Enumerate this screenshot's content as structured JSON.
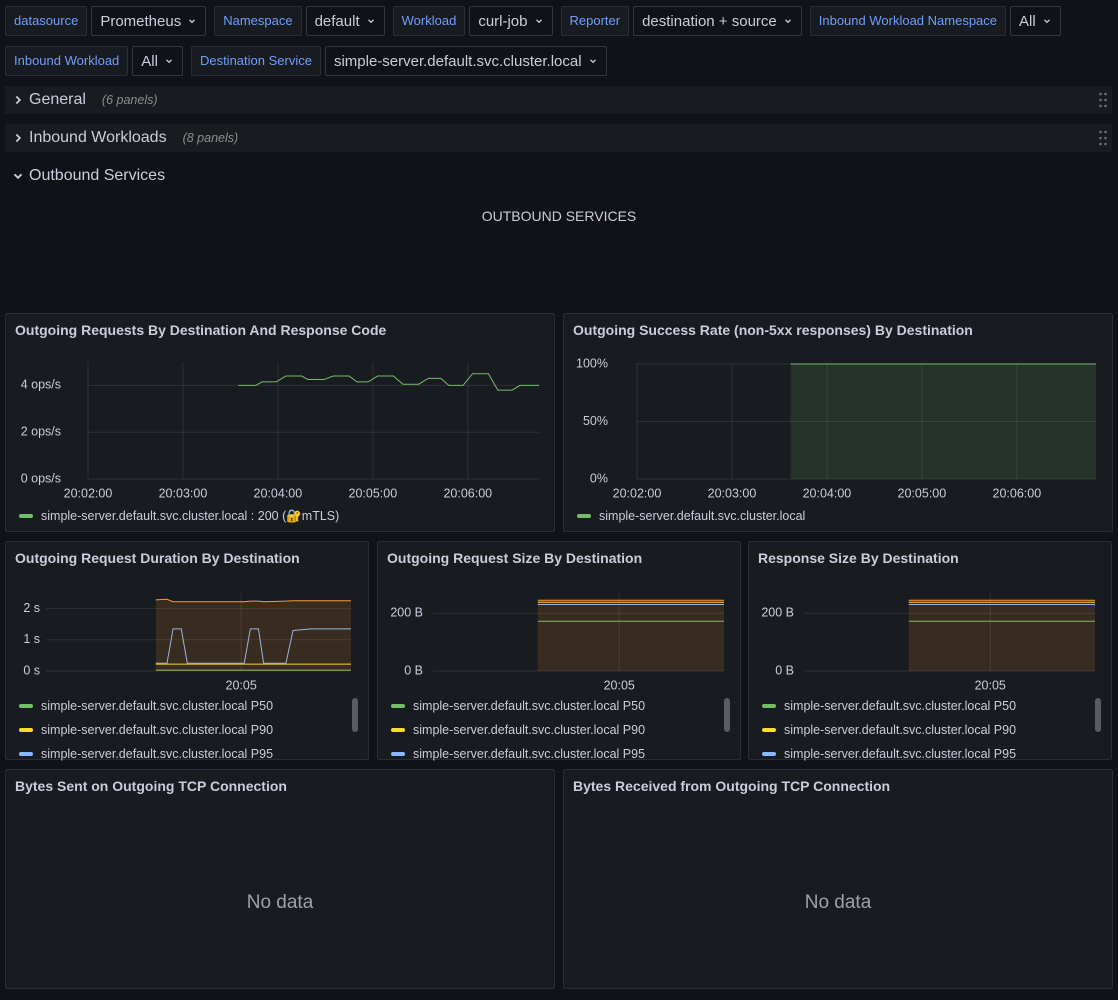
{
  "variables": [
    [
      {
        "label": "datasource",
        "value": "Prometheus"
      },
      {
        "label": "Namespace",
        "value": "default"
      },
      {
        "label": "Workload",
        "value": "curl-job"
      },
      {
        "label": "Reporter",
        "value": "destination + source"
      },
      {
        "label": "Inbound Workload Namespace",
        "value": "All"
      }
    ],
    [
      {
        "label": "Inbound Workload",
        "value": "All"
      },
      {
        "label": "Destination Service",
        "value": "simple-server.default.svc.cluster.local"
      }
    ]
  ],
  "rows": [
    {
      "title": "General",
      "count": "(6 panels)",
      "collapsed": true
    },
    {
      "title": "Inbound Workloads",
      "count": "(8 panels)",
      "collapsed": true
    },
    {
      "title": "Outbound Services",
      "collapsed": false
    }
  ],
  "text_panel": {
    "content": "OUTBOUND SERVICES"
  },
  "panels": [
    {
      "title": "Outgoing Requests By Destination And Response Code",
      "chart_data": {
        "type": "line",
        "x": [
          "20:03:35",
          "20:03:46",
          "20:03:50",
          "20:03:59",
          "20:04:05",
          "20:04:15",
          "20:04:19",
          "20:04:29",
          "20:04:35",
          "20:04:45",
          "20:04:50",
          "20:04:57",
          "20:05:03",
          "20:05:13",
          "20:05:19",
          "20:05:29",
          "20:05:35",
          "20:05:43",
          "20:05:48",
          "20:05:57",
          "20:06:03",
          "20:06:13",
          "20:06:19",
          "20:06:28",
          "20:06:33",
          "20:06:45"
        ],
        "series": [
          {
            "name": "simple-server.default.svc.cluster.local : 200 (🔐mTLS)",
            "color": "#73bf69",
            "values": [
              4.0,
              4.0,
              4.15,
              4.15,
              4.4,
              4.4,
              4.25,
              4.25,
              4.4,
              4.4,
              4.15,
              4.15,
              4.4,
              4.4,
              4.05,
              4.05,
              4.3,
              4.3,
              4.0,
              4.0,
              4.5,
              4.5,
              3.8,
              3.8,
              4.0,
              4.0
            ]
          }
        ],
        "xlim": [
          "20:02:00",
          "20:06:45"
        ],
        "xticks": [
          "20:02:00",
          "20:03:00",
          "20:04:00",
          "20:05:00",
          "20:06:00"
        ],
        "ylim": [
          0,
          5
        ],
        "yticks": [
          {
            "value": 0,
            "label": "0 ops/s"
          },
          {
            "value": 2,
            "label": "2 ops/s"
          },
          {
            "value": 4,
            "label": "4 ops/s"
          }
        ],
        "grid": true
      }
    },
    {
      "title": "Outgoing Success Rate (non-5xx responses) By Destination",
      "chart_data": {
        "type": "line",
        "x": [
          "20:03:37",
          "20:06:50"
        ],
        "series": [
          {
            "name": "simple-server.default.svc.cluster.local",
            "color": "#73bf69",
            "values": [
              100,
              100
            ],
            "fill": true
          }
        ],
        "xlim": [
          "20:02:00",
          "20:06:50"
        ],
        "xticks": [
          "20:02:00",
          "20:03:00",
          "20:04:00",
          "20:05:00",
          "20:06:00"
        ],
        "ylim": [
          0,
          100
        ],
        "yticks": [
          {
            "value": 0,
            "label": "0%"
          },
          {
            "value": 50,
            "label": "50%"
          },
          {
            "value": 100,
            "label": "100%"
          }
        ],
        "grid": true
      }
    },
    {
      "title": "Outgoing Request Duration By Destination",
      "chart_data": {
        "type": "line",
        "x": [
          "20:03:36",
          "20:03:47",
          "20:03:53",
          "20:04:01",
          "20:04:07",
          "20:05:03",
          "20:05:09",
          "20:05:17",
          "20:05:22",
          "20:05:44",
          "20:05:51",
          "20:06:09",
          "20:06:48"
        ],
        "series": [
          {
            "name": "simple-server.default.svc.cluster.local P50",
            "color": "#73bf69",
            "values": [
              0.03,
              0.03,
              0.03,
              0.03,
              0.03,
              0.03,
              0.03,
              0.03,
              0.03,
              0.03,
              0.03,
              0.03,
              0.03
            ]
          },
          {
            "name": "simple-server.default.svc.cluster.local P90",
            "color": "#fade2a",
            "values": [
              0.22,
              0.22,
              0.22,
              0.22,
              0.22,
              0.22,
              0.22,
              0.22,
              0.22,
              0.22,
              0.22,
              0.22,
              0.22
            ]
          },
          {
            "name": "simple-server.default.svc.cluster.local P95",
            "color": "#8ab8ff",
            "values": [
              0.25,
              0.25,
              1.35,
              1.35,
              0.25,
              0.25,
              1.35,
              1.35,
              0.25,
              0.25,
              1.3,
              1.35,
              1.35
            ]
          },
          {
            "color": "#ff9830",
            "values": [
              2.28,
              2.3,
              2.22,
              2.22,
              2.22,
              2.22,
              2.24,
              2.24,
              2.22,
              2.24,
              2.25,
              2.25,
              2.25
            ],
            "fill": true
          }
        ],
        "xlim": [
          "20:01:48",
          "20:06:48"
        ],
        "xticks": [
          "20:05"
        ],
        "ylim": [
          0,
          2.5
        ],
        "yticks": [
          {
            "value": 0,
            "label": "0 s"
          },
          {
            "value": 1,
            "label": "1 s"
          },
          {
            "value": 2,
            "label": "2 s"
          }
        ],
        "grid": true
      }
    },
    {
      "title": "Outgoing Request Size By Destination",
      "chart_data": {
        "type": "line",
        "x": [
          "20:03:36",
          "20:06:48"
        ],
        "series": [
          {
            "name": "simple-server.default.svc.cluster.local P50",
            "color": "#73bf69",
            "values": [
              172,
              172
            ]
          },
          {
            "name": "simple-server.default.svc.cluster.local P90",
            "color": "#fade2a",
            "values": [
              238,
              238
            ]
          },
          {
            "name": "simple-server.default.svc.cluster.local P95",
            "color": "#8ab8ff",
            "values": [
              230,
              230
            ]
          },
          {
            "color": "#ff9830",
            "values": [
              245,
              245
            ],
            "fill": true
          }
        ],
        "xlim": [
          "20:01:48",
          "20:06:48"
        ],
        "xticks": [
          "20:05"
        ],
        "ylim": [
          0,
          270
        ],
        "yticks": [
          {
            "value": 0,
            "label": "0 B"
          },
          {
            "value": 200,
            "label": "200 B"
          }
        ],
        "grid": true
      }
    },
    {
      "title": "Response Size By Destination",
      "chart_data": {
        "type": "line",
        "x": [
          "20:03:36",
          "20:06:48"
        ],
        "series": [
          {
            "name": "simple-server.default.svc.cluster.local P50",
            "color": "#73bf69",
            "values": [
              172,
              172
            ]
          },
          {
            "name": "simple-server.default.svc.cluster.local P90",
            "color": "#fade2a",
            "values": [
              238,
              238
            ]
          },
          {
            "name": "simple-server.default.svc.cluster.local P95",
            "color": "#8ab8ff",
            "values": [
              230,
              230
            ]
          },
          {
            "color": "#ff9830",
            "values": [
              245,
              245
            ],
            "fill": true
          }
        ],
        "xlim": [
          "20:01:48",
          "20:06:48"
        ],
        "xticks": [
          "20:05"
        ],
        "ylim": [
          0,
          270
        ],
        "yticks": [
          {
            "value": 0,
            "label": "0 B"
          },
          {
            "value": 200,
            "label": "200 B"
          }
        ],
        "grid": true
      }
    },
    {
      "title": "Bytes Sent on Outgoing TCP Connection",
      "message": "No data"
    },
    {
      "title": "Bytes Received from Outgoing TCP Connection",
      "message": "No data"
    }
  ]
}
